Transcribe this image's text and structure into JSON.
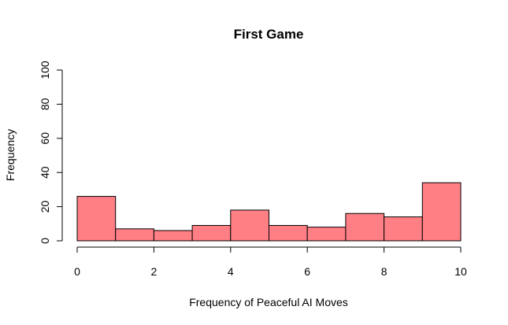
{
  "chart_data": {
    "type": "bar",
    "title": "First Game",
    "xlabel": "Frequency of Peaceful AI Moves",
    "ylabel": "Frequency",
    "bins": [
      {
        "start": 0,
        "end": 1,
        "value": 26
      },
      {
        "start": 1,
        "end": 2,
        "value": 7
      },
      {
        "start": 2,
        "end": 3,
        "value": 6
      },
      {
        "start": 3,
        "end": 4,
        "value": 9
      },
      {
        "start": 4,
        "end": 5,
        "value": 18
      },
      {
        "start": 5,
        "end": 6,
        "value": 9
      },
      {
        "start": 6,
        "end": 7,
        "value": 8
      },
      {
        "start": 7,
        "end": 8,
        "value": 16
      },
      {
        "start": 8,
        "end": 9,
        "value": 14
      },
      {
        "start": 9,
        "end": 10,
        "value": 34
      }
    ],
    "xlim": [
      0,
      10
    ],
    "ylim": [
      0,
      100
    ],
    "x_ticks": [
      "0",
      "2",
      "4",
      "6",
      "8",
      "10"
    ],
    "y_ticks": [
      "0",
      "20",
      "40",
      "60",
      "80",
      "100"
    ],
    "grid": false,
    "legend": "none",
    "bar_color": "#ff7f85"
  }
}
